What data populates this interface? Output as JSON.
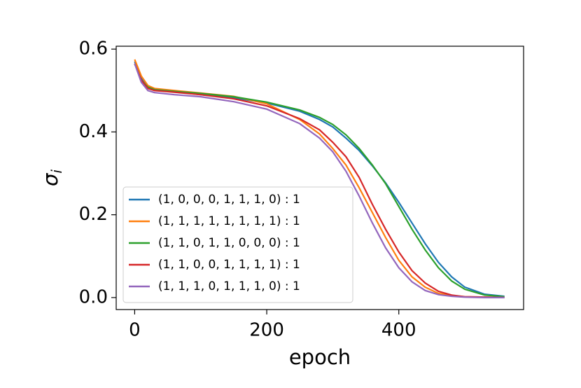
{
  "chart_data": {
    "type": "line",
    "xlabel": "epoch",
    "ylabel": "σ",
    "ylabel_subscript": "i",
    "x": [
      0,
      10,
      20,
      30,
      60,
      100,
      150,
      200,
      250,
      280,
      300,
      320,
      340,
      360,
      380,
      400,
      420,
      440,
      460,
      480,
      500,
      530,
      560
    ],
    "series": [
      {
        "name": "(1, 0, 0, 0, 1, 1, 1, 0) : 1",
        "color": "#1f77b4",
        "values": [
          0.57,
          0.53,
          0.51,
          0.503,
          0.497,
          0.49,
          0.482,
          0.47,
          0.45,
          0.43,
          0.412,
          0.385,
          0.355,
          0.318,
          0.277,
          0.23,
          0.18,
          0.13,
          0.085,
          0.05,
          0.025,
          0.008,
          0.003
        ]
      },
      {
        "name": "(1, 1, 1, 1, 1, 1, 1, 1) : 1",
        "color": "#ff7f0e",
        "values": [
          0.575,
          0.535,
          0.512,
          0.505,
          0.5,
          0.494,
          0.486,
          0.468,
          0.43,
          0.395,
          0.36,
          0.32,
          0.265,
          0.205,
          0.145,
          0.09,
          0.05,
          0.025,
          0.01,
          0.004,
          0.002,
          0.001,
          0
        ]
      },
      {
        "name": "(1, 1, 0, 1, 1, 0, 0, 0) : 1",
        "color": "#2ca02c",
        "values": [
          0.565,
          0.525,
          0.508,
          0.502,
          0.498,
          0.493,
          0.485,
          0.472,
          0.453,
          0.435,
          0.418,
          0.393,
          0.36,
          0.32,
          0.275,
          0.22,
          0.165,
          0.115,
          0.072,
          0.04,
          0.02,
          0.006,
          0.002
        ]
      },
      {
        "name": "(1, 1, 0, 0, 1, 1, 1, 1) : 1",
        "color": "#d62728",
        "values": [
          0.565,
          0.525,
          0.505,
          0.5,
          0.496,
          0.49,
          0.48,
          0.463,
          0.432,
          0.405,
          0.375,
          0.34,
          0.29,
          0.225,
          0.165,
          0.11,
          0.065,
          0.035,
          0.015,
          0.006,
          0.002,
          0.001,
          0
        ]
      },
      {
        "name": "(1, 1, 1, 0, 1, 1, 1, 0) : 1",
        "color": "#9467bd",
        "values": [
          0.565,
          0.52,
          0.5,
          0.495,
          0.49,
          0.485,
          0.473,
          0.455,
          0.42,
          0.385,
          0.352,
          0.305,
          0.245,
          0.18,
          0.12,
          0.072,
          0.038,
          0.017,
          0.007,
          0.003,
          0.001,
          0,
          0
        ]
      }
    ],
    "xlim": [
      -28,
      589
    ],
    "xticks": [
      0,
      200,
      400
    ],
    "ylim": [
      -0.029,
      0.607
    ],
    "yticks": [
      {
        "value": 0,
        "label": "0.0"
      },
      {
        "value": 0.2,
        "label": "0.2"
      },
      {
        "value": 0.4,
        "label": "0.4"
      },
      {
        "value": 0.6,
        "label": "0.6"
      }
    ],
    "legend": "lower left",
    "grid": false
  }
}
